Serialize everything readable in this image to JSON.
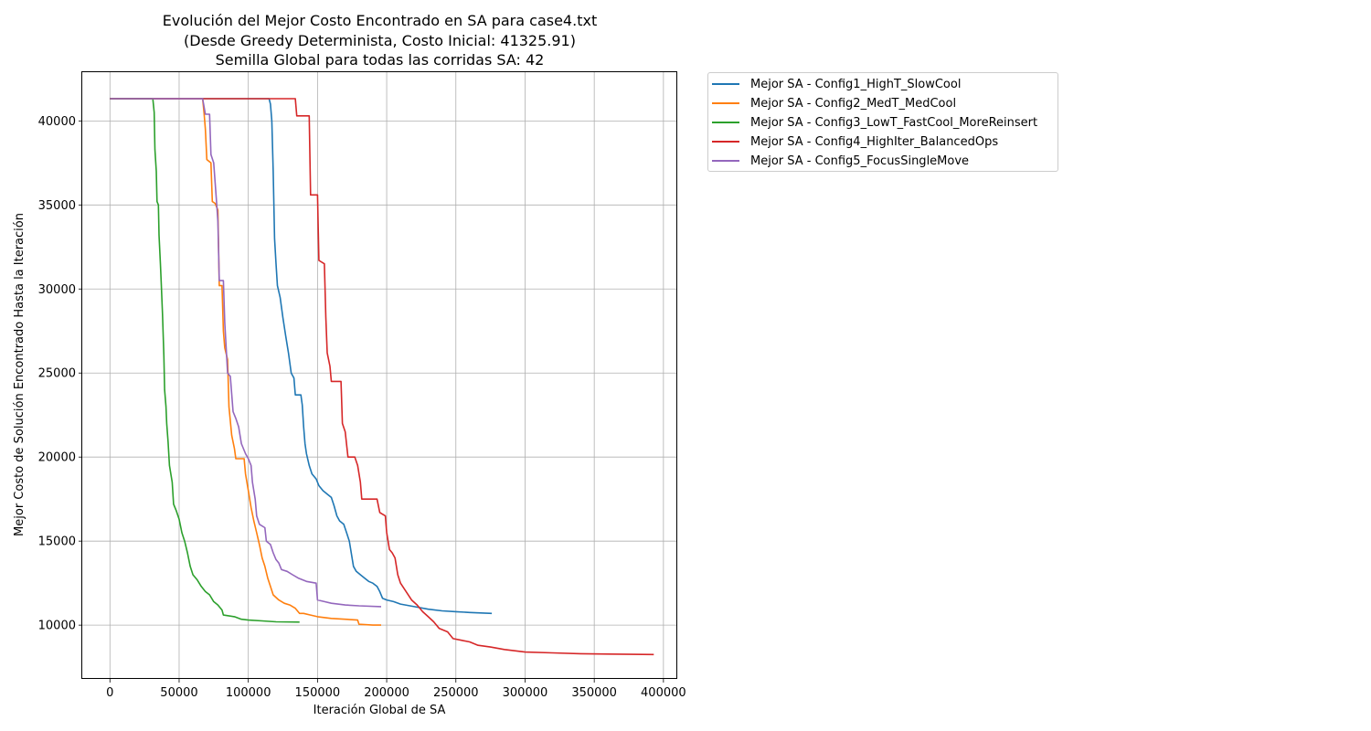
{
  "chart_data": {
    "type": "line",
    "title_lines": [
      "Evolución del Mejor Costo Encontrado en SA para case4.txt",
      "(Desde Greedy Determinista, Costo Inicial: 41325.91)",
      "Semilla Global para todas las corridas SA: 42"
    ],
    "xlabel": "Iteración Global de SA",
    "ylabel": "Mejor Costo de Solución Encontrado Hasta la Iteración",
    "xlim": [
      -20000,
      410000
    ],
    "ylim": [
      6800,
      42900
    ],
    "xticks": [
      0,
      50000,
      100000,
      150000,
      200000,
      250000,
      300000,
      350000,
      400000
    ],
    "yticks": [
      10000,
      15000,
      20000,
      25000,
      30000,
      35000,
      40000
    ],
    "grid": true,
    "legend_position": "outside-right-top",
    "series": [
      {
        "name": "Mejor SA - Config1_HighT_SlowCool",
        "color": "#1f77b4",
        "points": [
          [
            0,
            41326
          ],
          [
            115000,
            41326
          ],
          [
            116000,
            41000
          ],
          [
            117000,
            40000
          ],
          [
            118000,
            37000
          ],
          [
            119000,
            33000
          ],
          [
            120000,
            31500
          ],
          [
            121000,
            30200
          ],
          [
            123000,
            29500
          ],
          [
            125000,
            28300
          ],
          [
            127000,
            27200
          ],
          [
            129000,
            26200
          ],
          [
            131000,
            25000
          ],
          [
            133000,
            24700
          ],
          [
            134000,
            23700
          ],
          [
            138000,
            23700
          ],
          [
            139000,
            23100
          ],
          [
            140000,
            21800
          ],
          [
            141000,
            20800
          ],
          [
            142000,
            20200
          ],
          [
            144000,
            19500
          ],
          [
            146000,
            19000
          ],
          [
            149000,
            18700
          ],
          [
            151000,
            18300
          ],
          [
            154000,
            18000
          ],
          [
            157000,
            17800
          ],
          [
            160000,
            17600
          ],
          [
            162000,
            17100
          ],
          [
            164000,
            16500
          ],
          [
            166000,
            16200
          ],
          [
            169000,
            16000
          ],
          [
            171000,
            15500
          ],
          [
            173000,
            15000
          ],
          [
            175000,
            14000
          ],
          [
            176000,
            13500
          ],
          [
            178000,
            13200
          ],
          [
            181000,
            13000
          ],
          [
            184000,
            12800
          ],
          [
            187000,
            12600
          ],
          [
            190000,
            12500
          ],
          [
            193000,
            12300
          ],
          [
            195000,
            12000
          ],
          [
            197000,
            11600
          ],
          [
            200000,
            11500
          ],
          [
            205000,
            11400
          ],
          [
            210000,
            11250
          ],
          [
            220000,
            11100
          ],
          [
            230000,
            10950
          ],
          [
            240000,
            10850
          ],
          [
            250000,
            10800
          ],
          [
            260000,
            10750
          ],
          [
            276000,
            10700
          ]
        ]
      },
      {
        "name": "Mejor SA - Config2_MedT_MedCool",
        "color": "#ff7f0e",
        "points": [
          [
            0,
            41326
          ],
          [
            67000,
            41326
          ],
          [
            68000,
            40500
          ],
          [
            69000,
            39500
          ],
          [
            70000,
            37700
          ],
          [
            73000,
            37500
          ],
          [
            74000,
            35200
          ],
          [
            76000,
            35100
          ],
          [
            78000,
            34700
          ],
          [
            79000,
            30200
          ],
          [
            81000,
            30200
          ],
          [
            82000,
            27500
          ],
          [
            83000,
            26500
          ],
          [
            85000,
            25800
          ],
          [
            86000,
            23000
          ],
          [
            88000,
            21300
          ],
          [
            90000,
            20500
          ],
          [
            91000,
            19900
          ],
          [
            97000,
            19900
          ],
          [
            98000,
            19000
          ],
          [
            100000,
            18000
          ],
          [
            102000,
            17000
          ],
          [
            104000,
            16200
          ],
          [
            106000,
            15500
          ],
          [
            108000,
            14800
          ],
          [
            110000,
            14000
          ],
          [
            112000,
            13500
          ],
          [
            114000,
            12800
          ],
          [
            116000,
            12300
          ],
          [
            118000,
            11800
          ],
          [
            122000,
            11500
          ],
          [
            126000,
            11300
          ],
          [
            130000,
            11200
          ],
          [
            134000,
            11000
          ],
          [
            137000,
            10700
          ],
          [
            140000,
            10700
          ],
          [
            145000,
            10600
          ],
          [
            150000,
            10500
          ],
          [
            160000,
            10400
          ],
          [
            170000,
            10350
          ],
          [
            179000,
            10300
          ],
          [
            180000,
            10050
          ],
          [
            190000,
            10000
          ],
          [
            196000,
            10000
          ]
        ]
      },
      {
        "name": "Mejor SA - Config3_LowT_FastCool_MoreReinsert",
        "color": "#2ca02c",
        "points": [
          [
            0,
            41326
          ],
          [
            31000,
            41326
          ],
          [
            32000,
            40500
          ],
          [
            32500,
            38300
          ],
          [
            33500,
            37000
          ],
          [
            34000,
            35200
          ],
          [
            35000,
            35000
          ],
          [
            35500,
            33200
          ],
          [
            36500,
            31500
          ],
          [
            37000,
            30500
          ],
          [
            38000,
            28500
          ],
          [
            39000,
            26000
          ],
          [
            39500,
            24000
          ],
          [
            40500,
            23000
          ],
          [
            41000,
            22000
          ],
          [
            42000,
            20900
          ],
          [
            43000,
            19500
          ],
          [
            44000,
            19000
          ],
          [
            45000,
            18500
          ],
          [
            46000,
            17200
          ],
          [
            48000,
            16800
          ],
          [
            50000,
            16300
          ],
          [
            52000,
            15500
          ],
          [
            54000,
            15000
          ],
          [
            56000,
            14300
          ],
          [
            58000,
            13500
          ],
          [
            60000,
            13000
          ],
          [
            63000,
            12700
          ],
          [
            66000,
            12300
          ],
          [
            69000,
            12000
          ],
          [
            72000,
            11800
          ],
          [
            75000,
            11400
          ],
          [
            78000,
            11200
          ],
          [
            81000,
            10900
          ],
          [
            82000,
            10600
          ],
          [
            90000,
            10500
          ],
          [
            95000,
            10350
          ],
          [
            100000,
            10300
          ],
          [
            110000,
            10250
          ],
          [
            120000,
            10200
          ],
          [
            137000,
            10180
          ]
        ]
      },
      {
        "name": "Mejor SA - Config4_HighIter_BalancedOps",
        "color": "#d62728",
        "points": [
          [
            0,
            41326
          ],
          [
            134000,
            41326
          ],
          [
            135000,
            40300
          ],
          [
            144000,
            40300
          ],
          [
            145000,
            35600
          ],
          [
            150000,
            35600
          ],
          [
            151000,
            31700
          ],
          [
            155000,
            31500
          ],
          [
            156000,
            28300
          ],
          [
            157000,
            26200
          ],
          [
            159000,
            25400
          ],
          [
            160000,
            24500
          ],
          [
            167000,
            24500
          ],
          [
            168000,
            22000
          ],
          [
            170000,
            21500
          ],
          [
            172000,
            20000
          ],
          [
            177000,
            20000
          ],
          [
            179000,
            19500
          ],
          [
            181000,
            18500
          ],
          [
            182000,
            17500
          ],
          [
            193000,
            17500
          ],
          [
            195000,
            16700
          ],
          [
            199000,
            16500
          ],
          [
            200000,
            15500
          ],
          [
            202000,
            14500
          ],
          [
            204000,
            14300
          ],
          [
            206000,
            14000
          ],
          [
            208000,
            13000
          ],
          [
            210000,
            12500
          ],
          [
            214000,
            12000
          ],
          [
            218000,
            11500
          ],
          [
            222000,
            11200
          ],
          [
            226000,
            10800
          ],
          [
            230000,
            10500
          ],
          [
            234000,
            10200
          ],
          [
            238000,
            9800
          ],
          [
            244000,
            9600
          ],
          [
            248000,
            9200
          ],
          [
            254000,
            9100
          ],
          [
            260000,
            9000
          ],
          [
            266000,
            8800
          ],
          [
            275000,
            8700
          ],
          [
            285000,
            8550
          ],
          [
            300000,
            8400
          ],
          [
            320000,
            8350
          ],
          [
            340000,
            8300
          ],
          [
            360000,
            8280
          ],
          [
            393000,
            8250
          ]
        ]
      },
      {
        "name": "Mejor SA - Config5_FocusSingleMove",
        "color": "#9467bd",
        "points": [
          [
            0,
            41326
          ],
          [
            67000,
            41326
          ],
          [
            69000,
            40400
          ],
          [
            72000,
            40400
          ],
          [
            73000,
            38000
          ],
          [
            75000,
            37500
          ],
          [
            77000,
            35200
          ],
          [
            78000,
            34000
          ],
          [
            79000,
            30500
          ],
          [
            82000,
            30500
          ],
          [
            83000,
            28000
          ],
          [
            85000,
            25000
          ],
          [
            87000,
            24800
          ],
          [
            89000,
            22700
          ],
          [
            91000,
            22300
          ],
          [
            93000,
            21800
          ],
          [
            95000,
            20800
          ],
          [
            98000,
            20200
          ],
          [
            100000,
            19900
          ],
          [
            102000,
            19500
          ],
          [
            103000,
            18500
          ],
          [
            105000,
            17500
          ],
          [
            106000,
            16500
          ],
          [
            108000,
            16000
          ],
          [
            112000,
            15800
          ],
          [
            113000,
            15000
          ],
          [
            116000,
            14800
          ],
          [
            118000,
            14300
          ],
          [
            120000,
            13900
          ],
          [
            122000,
            13700
          ],
          [
            124000,
            13300
          ],
          [
            128000,
            13200
          ],
          [
            132000,
            13000
          ],
          [
            136000,
            12800
          ],
          [
            142000,
            12600
          ],
          [
            149000,
            12500
          ],
          [
            150000,
            11500
          ],
          [
            155000,
            11400
          ],
          [
            160000,
            11300
          ],
          [
            170000,
            11200
          ],
          [
            180000,
            11150
          ],
          [
            196000,
            11100
          ]
        ]
      }
    ]
  }
}
